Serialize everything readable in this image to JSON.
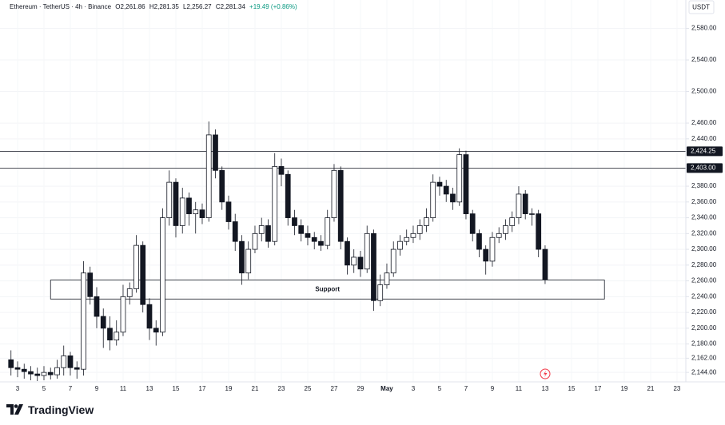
{
  "chart_data": {
    "type": "candlestick",
    "title": "Ethereum · TetherUS · 4h · Binance",
    "ohlc_readout": [
      "O2,261.86",
      "H2,281.35",
      "L2,256.27",
      "C2,281.34",
      "+19.49 (+0.86%)"
    ],
    "currency": "USDT",
    "up_color": "#ffffff",
    "down_color": "#131722",
    "grid": true,
    "x": [
      2.5,
      3,
      3.5,
      4,
      4.5,
      5,
      5.5,
      6,
      6.5,
      7,
      7.5,
      8,
      8.5,
      9,
      9.5,
      10,
      10.5,
      11,
      11.5,
      12,
      12.5,
      13,
      13.5,
      14,
      14.5,
      15,
      15.5,
      16,
      16.5,
      17,
      17.5,
      18,
      18.5,
      19,
      19.5,
      20,
      20.5,
      21,
      21.5,
      22,
      22.5,
      23,
      23.5,
      24,
      24.5,
      25,
      25.5,
      26,
      26.5,
      27,
      27.5,
      28,
      28.5,
      29,
      29.5,
      30,
      30.5,
      31,
      31.5,
      32,
      32.5,
      33,
      33.5,
      34,
      34.5,
      35,
      35.5,
      36,
      36.5,
      37,
      37.5,
      38,
      38.5,
      39,
      39.5,
      40,
      40.5,
      41,
      41.5,
      42,
      42.5,
      43
    ],
    "open": [
      2160,
      2150,
      2148,
      2145,
      2142,
      2140,
      2144,
      2141,
      2150,
      2165,
      2150,
      2148,
      2270,
      2240,
      2215,
      2200,
      2185,
      2195,
      2240,
      2250,
      2305,
      2230,
      2200,
      2195,
      2340,
      2385,
      2330,
      2365,
      2345,
      2350,
      2340,
      2445,
      2400,
      2360,
      2335,
      2310,
      2270,
      2300,
      2320,
      2330,
      2310,
      2405,
      2395,
      2340,
      2330,
      2320,
      2315,
      2310,
      2305,
      2340,
      2400,
      2310,
      2280,
      2290,
      2275,
      2320,
      2235,
      2255,
      2270,
      2300,
      2310,
      2315,
      2320,
      2330,
      2340,
      2385,
      2380,
      2370,
      2360,
      2420,
      2345,
      2320,
      2300,
      2285,
      2315,
      2320,
      2330,
      2340,
      2370,
      2345,
      2345,
      2300
    ],
    "high": [
      2172,
      2158,
      2155,
      2152,
      2150,
      2152,
      2150,
      2160,
      2178,
      2170,
      2158,
      2285,
      2278,
      2252,
      2225,
      2215,
      2210,
      2255,
      2258,
      2318,
      2310,
      2238,
      2210,
      2352,
      2400,
      2390,
      2378,
      2372,
      2360,
      2358,
      2462,
      2452,
      2405,
      2368,
      2345,
      2318,
      2310,
      2330,
      2340,
      2338,
      2422,
      2415,
      2400,
      2350,
      2338,
      2330,
      2322,
      2318,
      2350,
      2408,
      2405,
      2315,
      2300,
      2298,
      2330,
      2325,
      2268,
      2282,
      2310,
      2318,
      2325,
      2330,
      2338,
      2352,
      2395,
      2392,
      2388,
      2378,
      2428,
      2425,
      2350,
      2325,
      2305,
      2322,
      2328,
      2338,
      2348,
      2380,
      2375,
      2352,
      2350,
      2305
    ],
    "low": [
      2140,
      2138,
      2136,
      2134,
      2133,
      2134,
      2135,
      2136,
      2140,
      2140,
      2136,
      2140,
      2230,
      2200,
      2175,
      2172,
      2178,
      2190,
      2230,
      2245,
      2220,
      2185,
      2178,
      2190,
      2330,
      2315,
      2320,
      2330,
      2320,
      2332,
      2335,
      2390,
      2350,
      2325,
      2298,
      2255,
      2262,
      2295,
      2310,
      2302,
      2305,
      2380,
      2330,
      2318,
      2310,
      2305,
      2300,
      2298,
      2300,
      2335,
      2300,
      2268,
      2270,
      2265,
      2270,
      2222,
      2228,
      2250,
      2265,
      2292,
      2305,
      2308,
      2312,
      2322,
      2335,
      2368,
      2360,
      2350,
      2355,
      2338,
      2310,
      2290,
      2268,
      2278,
      2308,
      2312,
      2322,
      2332,
      2338,
      2330,
      2290,
      2256
    ],
    "close": [
      2150,
      2148,
      2145,
      2142,
      2140,
      2144,
      2141,
      2150,
      2165,
      2150,
      2148,
      2270,
      2240,
      2215,
      2200,
      2185,
      2195,
      2240,
      2250,
      2305,
      2230,
      2200,
      2195,
      2340,
      2385,
      2330,
      2365,
      2345,
      2350,
      2340,
      2445,
      2400,
      2360,
      2335,
      2310,
      2270,
      2300,
      2320,
      2330,
      2310,
      2405,
      2395,
      2340,
      2330,
      2320,
      2315,
      2310,
      2305,
      2340,
      2400,
      2310,
      2280,
      2290,
      2275,
      2320,
      2235,
      2255,
      2270,
      2300,
      2310,
      2315,
      2320,
      2330,
      2340,
      2385,
      2380,
      2370,
      2360,
      2420,
      2345,
      2320,
      2300,
      2285,
      2315,
      2320,
      2330,
      2340,
      2370,
      2345,
      2345,
      2300,
      2262
    ],
    "xlim": [
      1.667,
      53.67
    ],
    "xticks": [
      3,
      5,
      7,
      9,
      11,
      13,
      15,
      17,
      19,
      21,
      23,
      25,
      27,
      29,
      {
        "value": 31,
        "label": "May"
      },
      {
        "value": 33,
        "label": "3"
      },
      {
        "value": 35,
        "label": "5"
      },
      {
        "value": 37,
        "label": "7"
      },
      {
        "value": 39,
        "label": "9"
      },
      {
        "value": 41,
        "label": "11"
      },
      {
        "value": 43,
        "label": "13"
      },
      {
        "value": 45,
        "label": "15"
      },
      {
        "value": 47,
        "label": "17"
      },
      {
        "value": 49,
        "label": "19"
      },
      {
        "value": 51,
        "label": "21"
      },
      {
        "value": 53,
        "label": "23"
      }
    ],
    "ylim": [
      2132,
      2616
    ],
    "yticks": [
      {
        "value": 2580,
        "label": "2,580.00"
      },
      {
        "value": 2540,
        "label": "2,540.00"
      },
      {
        "value": 2500,
        "label": "2,500.00"
      },
      {
        "value": 2460,
        "label": "2,460.00"
      },
      {
        "value": 2440,
        "label": "2,440.00"
      },
      {
        "value": 2380,
        "label": "2,380.00"
      },
      {
        "value": 2360,
        "label": "2,360.00"
      },
      {
        "value": 2340,
        "label": "2,340.00"
      },
      {
        "value": 2320,
        "label": "2,320.00"
      },
      {
        "value": 2300,
        "label": "2,300.00"
      },
      {
        "value": 2280,
        "label": "2,280.00"
      },
      {
        "value": 2260,
        "label": "2,260.00"
      },
      {
        "value": 2240,
        "label": "2,240.00"
      },
      {
        "value": 2220,
        "label": "2,220.00"
      },
      {
        "value": 2200,
        "label": "2,200.00"
      },
      {
        "value": 2180,
        "label": "2,180.00"
      },
      {
        "value": 2162,
        "label": "2,162.00"
      },
      {
        "value": 2144,
        "label": "2,144.00"
      }
    ],
    "horizontal_lines": [
      {
        "value": 2424.25,
        "label": "2,424.25"
      },
      {
        "value": 2403,
        "label": "2,403.00"
      }
    ],
    "zone": {
      "label": "Support",
      "range": [
        2237,
        2261
      ],
      "x_range": [
        5.5,
        47.5
      ]
    }
  },
  "branding": "TradingView"
}
